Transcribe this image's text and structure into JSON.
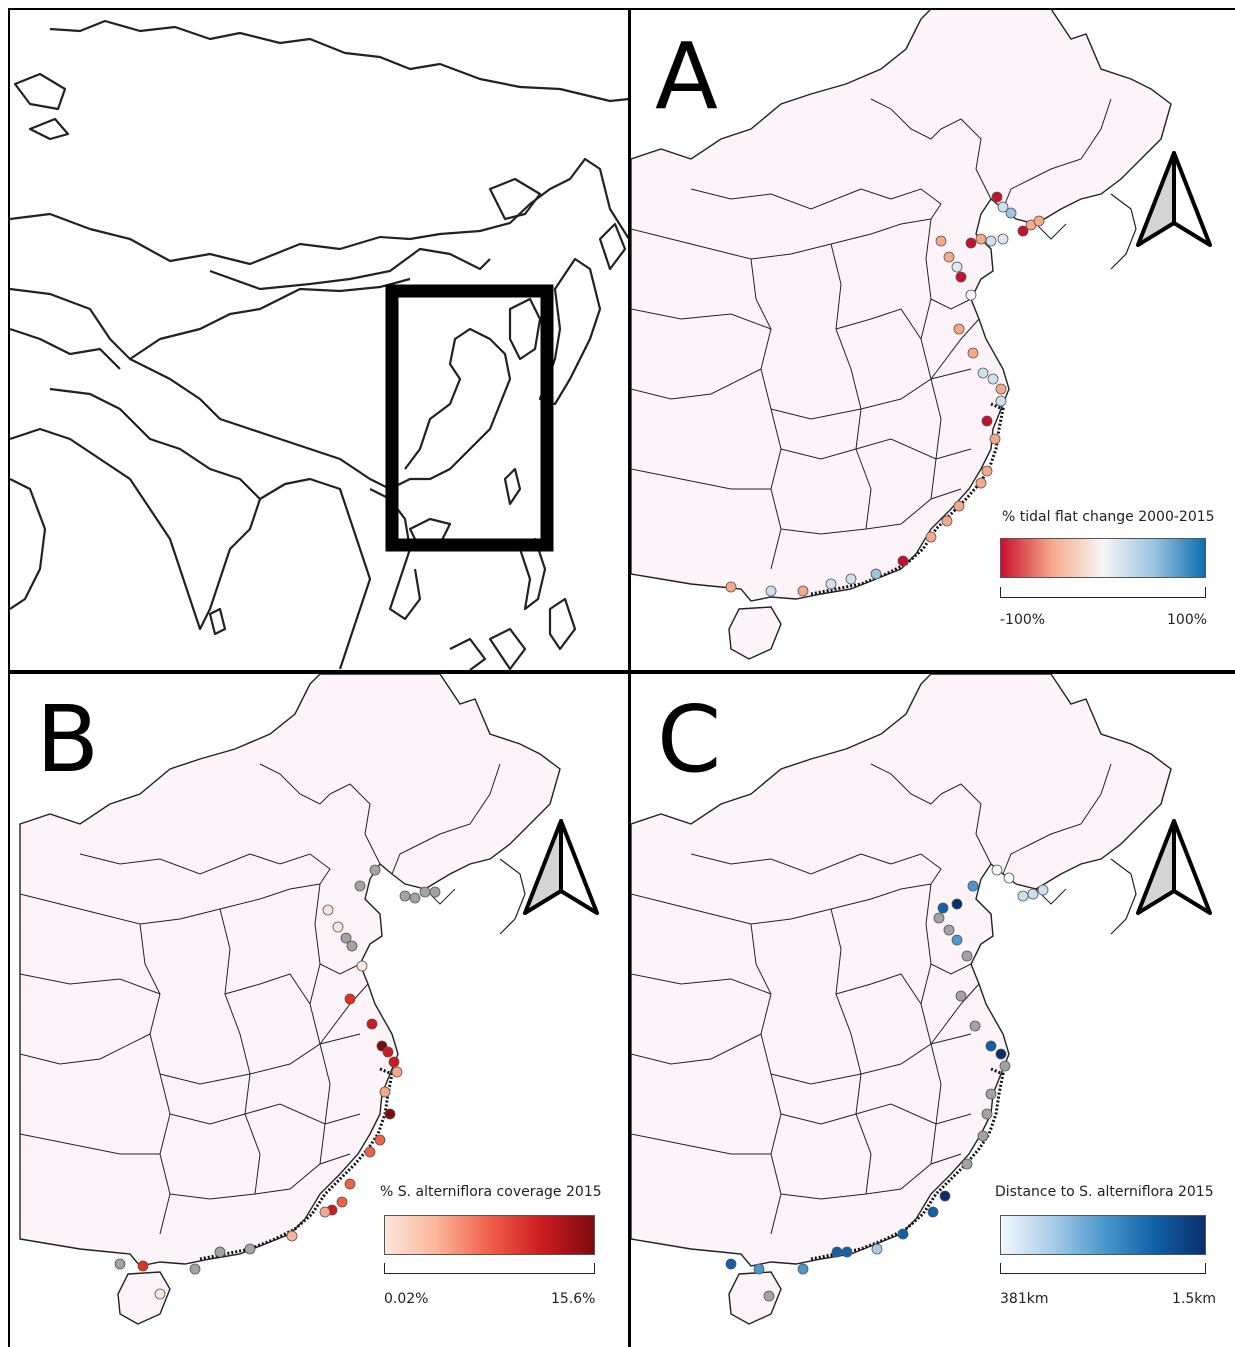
{
  "colors": {
    "land": "#fdf4fa",
    "outline": "#222222",
    "frame": "#000000",
    "no_data_marker": "#a3a3a3"
  },
  "overview": {
    "name": "Asia locator map",
    "inset_box": "study area (eastern China coast)"
  },
  "panels": [
    {
      "id": "A",
      "letter": "A",
      "legend_title": "% tidal flat change 2000-2015",
      "legend_min": "-100%",
      "legend_max": "100%",
      "gradient": [
        "#c8102e",
        "#f6a88a",
        "#f7f7f7",
        "#9cc3e0",
        "#0a6fb0"
      ],
      "north_arrow_icon": "north-arrow-icon"
    },
    {
      "id": "B",
      "letter": "B",
      "legend_title": "% S. alterniflora coverage 2015",
      "legend_min": "0.02%",
      "legend_max": "15.6%",
      "gradient": [
        "#fde6dc",
        "#fbb49a",
        "#f0604a",
        "#cc1b20",
        "#7f0a10"
      ],
      "north_arrow_icon": "north-arrow-icon"
    },
    {
      "id": "C",
      "letter": "C",
      "legend_title": "Distance to S. alterniflora 2015",
      "legend_min": "381km",
      "legend_max": "1.5km",
      "gradient": [
        "#f3f8fd",
        "#a9cde8",
        "#4c98cd",
        "#1261a8",
        "#0a2e6b"
      ],
      "north_arrow_icon": "north-arrow-icon"
    }
  ]
}
